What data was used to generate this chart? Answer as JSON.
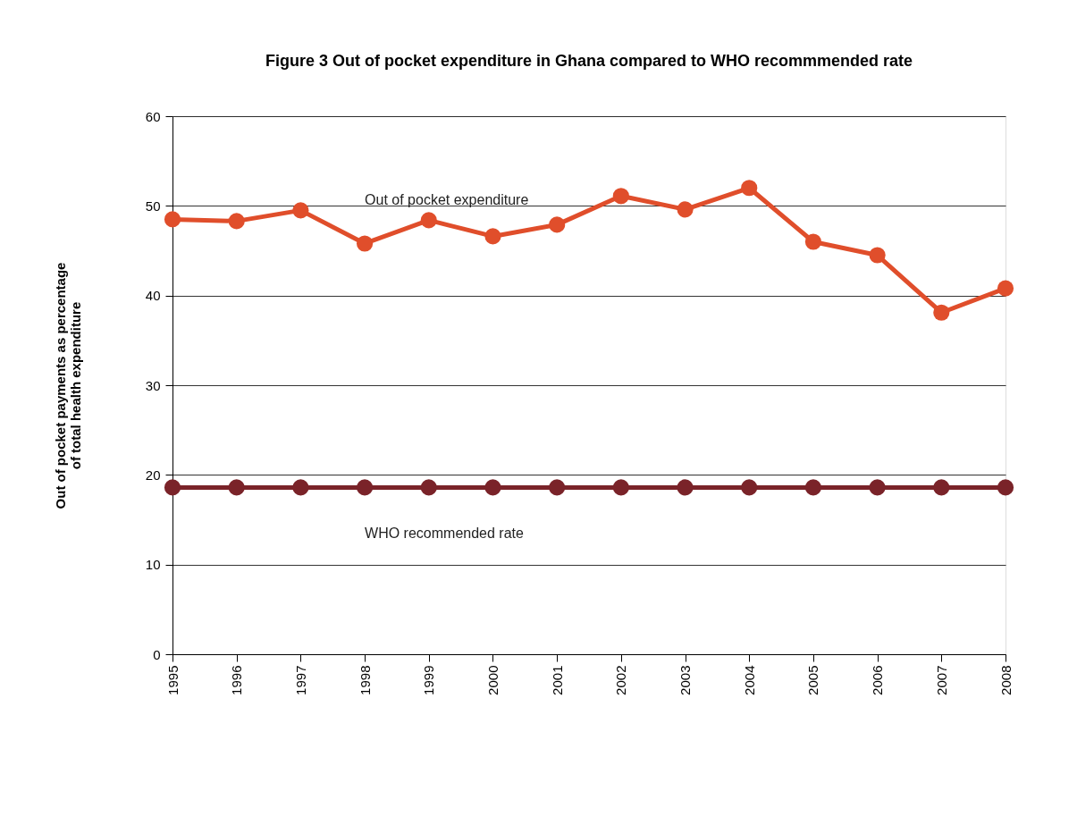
{
  "chart_data": {
    "type": "line",
    "title": "Figure 3 Out of pocket expenditure in Ghana compared to WHO recommmended rate",
    "ylabel": "Out of pocket payments as percentage\nof total health expenditure",
    "categories": [
      "1995",
      "1996",
      "1997",
      "1998",
      "1999",
      "2000",
      "2001",
      "2002",
      "2003",
      "2004",
      "2005",
      "2006",
      "2007",
      "2008"
    ],
    "series": [
      {
        "name": "Out of pocket expenditure",
        "color": "#e04e2b",
        "values": [
          48.5,
          48.3,
          49.5,
          45.8,
          48.4,
          46.6,
          47.9,
          51.1,
          49.6,
          52.0,
          46.0,
          44.5,
          38.1,
          40.8
        ]
      },
      {
        "name": "WHO recommended rate",
        "color": "#7a2329",
        "values": [
          18.6,
          18.6,
          18.6,
          18.6,
          18.6,
          18.6,
          18.6,
          18.6,
          18.6,
          18.6,
          18.6,
          18.6,
          18.6,
          18.6
        ]
      }
    ],
    "ylim": [
      0,
      60
    ],
    "yticks": [
      0,
      10,
      20,
      30,
      40,
      50,
      60
    ],
    "grid": "y",
    "legend": false,
    "marker": "circle",
    "line_style": "solid"
  }
}
